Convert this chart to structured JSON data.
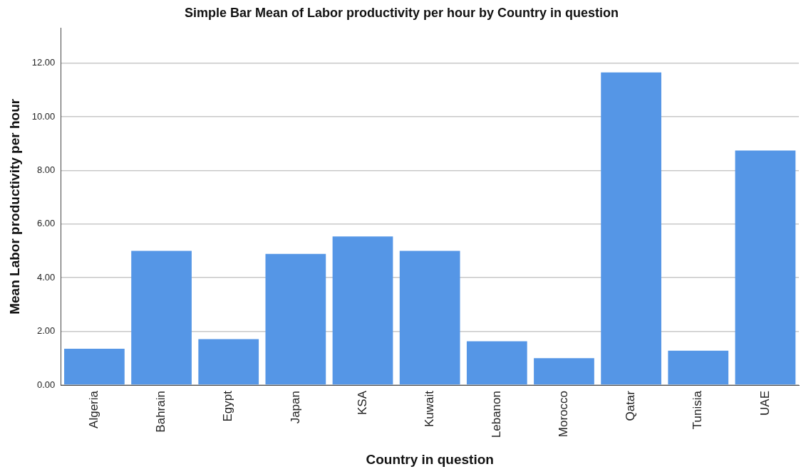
{
  "chart_data": {
    "type": "bar",
    "title": "Simple Bar Mean of Labor productivity per hour by Country in question",
    "xlabel": "Country in question",
    "ylabel": "Mean Labor productivity per hour",
    "categories": [
      "Algeria",
      "Bahrain",
      "Egypt",
      "Japan",
      "KSA",
      "Kuwait",
      "Lebanon",
      "Morocco",
      "Qatar",
      "Tunisia",
      "UAE"
    ],
    "values": [
      1.35,
      5.0,
      1.71,
      4.89,
      5.54,
      5.0,
      1.63,
      1.0,
      11.65,
      1.28,
      8.74
    ],
    "color": "#5596e6",
    "ylim": [
      0,
      13.3
    ],
    "yticks": [
      {
        "value": 0,
        "label": "0.00"
      },
      {
        "value": 2,
        "label": "2.00"
      },
      {
        "value": 4,
        "label": "4.00"
      },
      {
        "value": 6,
        "label": "6.00"
      },
      {
        "value": 8,
        "label": "8.00"
      },
      {
        "value": 10,
        "label": "10.00"
      },
      {
        "value": 12,
        "label": "12.00"
      }
    ],
    "grid": "y",
    "legend": false
  }
}
